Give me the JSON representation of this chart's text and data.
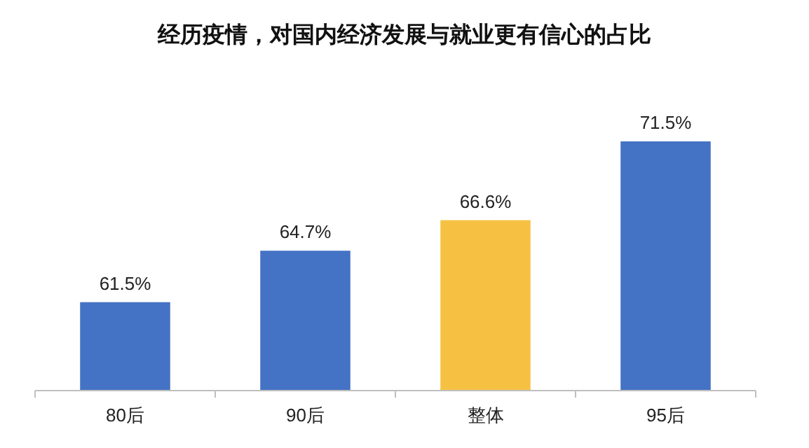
{
  "chart_data": {
    "type": "bar",
    "title": "经历疫情，对国内经济发展与就业更有信心的占比",
    "categories": [
      "80后",
      "90后",
      "整体",
      "95后"
    ],
    "values": [
      61.5,
      64.7,
      66.6,
      71.5
    ],
    "colors": [
      "#4472c4",
      "#4472c4",
      "#f6c143",
      "#4472c4"
    ],
    "ylim": [
      56,
      71.5
    ],
    "value_labels": [
      "61.5%",
      "64.7%",
      "66.6%",
      "71.5%"
    ]
  }
}
